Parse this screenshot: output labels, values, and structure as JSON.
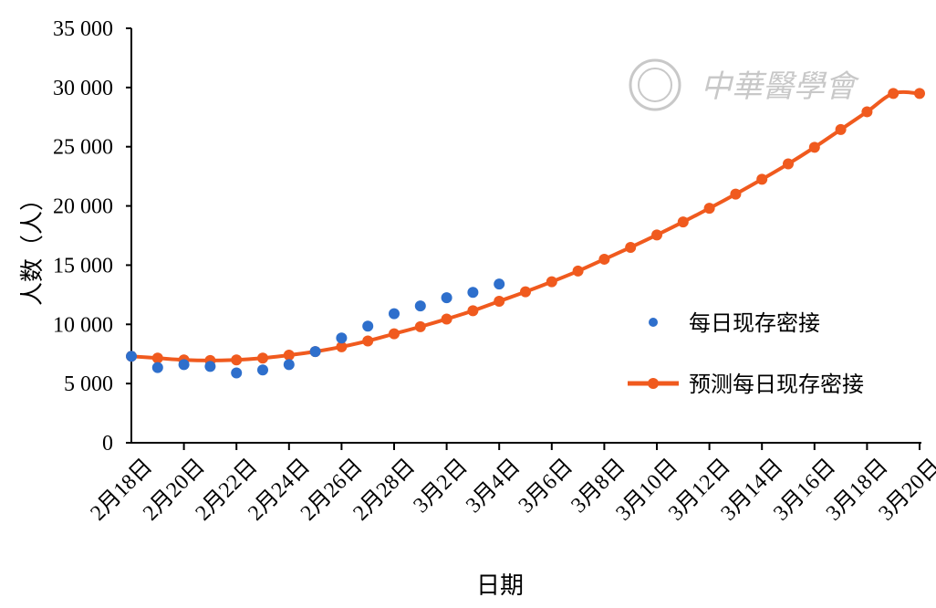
{
  "watermark": {
    "text": "中華醫學會",
    "color": "#c8c8c8"
  },
  "chart_data": {
    "type": "line",
    "xlabel": "日期",
    "ylabel": "人数（人）",
    "ylim": [
      0,
      35000
    ],
    "yticks": [
      0,
      5000,
      10000,
      15000,
      20000,
      25000,
      30000,
      35000
    ],
    "ytick_labels": [
      "0",
      "5 000",
      "10 000",
      "15 000",
      "20 000",
      "25 000",
      "30 000",
      "35 000"
    ],
    "x_tick_labels": [
      "2月18日",
      "2月20日",
      "2月22日",
      "2月24日",
      "2月26日",
      "2月28日",
      "3月2日",
      "3月4日",
      "3月6日",
      "3月8日",
      "3月10日",
      "3月12日",
      "3月14日",
      "3月16日",
      "3月18日",
      "3月20日"
    ],
    "grid": false,
    "legend_position": "right",
    "series": [
      {
        "name": "每日现存密接",
        "style": "scatter",
        "color": "#2e6fcc",
        "x": [
          0,
          1,
          2,
          3,
          4,
          5,
          6,
          7,
          8,
          9,
          10,
          11,
          12,
          13,
          14
        ],
        "values": [
          7300,
          6350,
          6600,
          6450,
          5900,
          6150,
          6600,
          7700,
          8850,
          9850,
          10900,
          11550,
          12250,
          12700,
          13400
        ]
      },
      {
        "name": "预测每日现存密接",
        "style": "line",
        "color": "#f05a1e",
        "x": [
          0,
          1,
          2,
          3,
          4,
          5,
          6,
          7,
          8,
          9,
          10,
          11,
          12,
          13,
          14,
          15,
          16,
          17,
          18,
          19,
          20,
          21,
          22,
          23,
          24,
          25,
          26,
          27,
          28,
          29,
          30
        ],
        "values": [
          7300,
          7150,
          7000,
          6950,
          7000,
          7150,
          7400,
          7700,
          8100,
          8600,
          9200,
          9800,
          10450,
          11150,
          11950,
          12750,
          13600,
          14500,
          15500,
          16500,
          17550,
          18650,
          19800,
          21000,
          22250,
          23550,
          24950,
          26450,
          27950,
          29500,
          29500
        ]
      }
    ]
  }
}
